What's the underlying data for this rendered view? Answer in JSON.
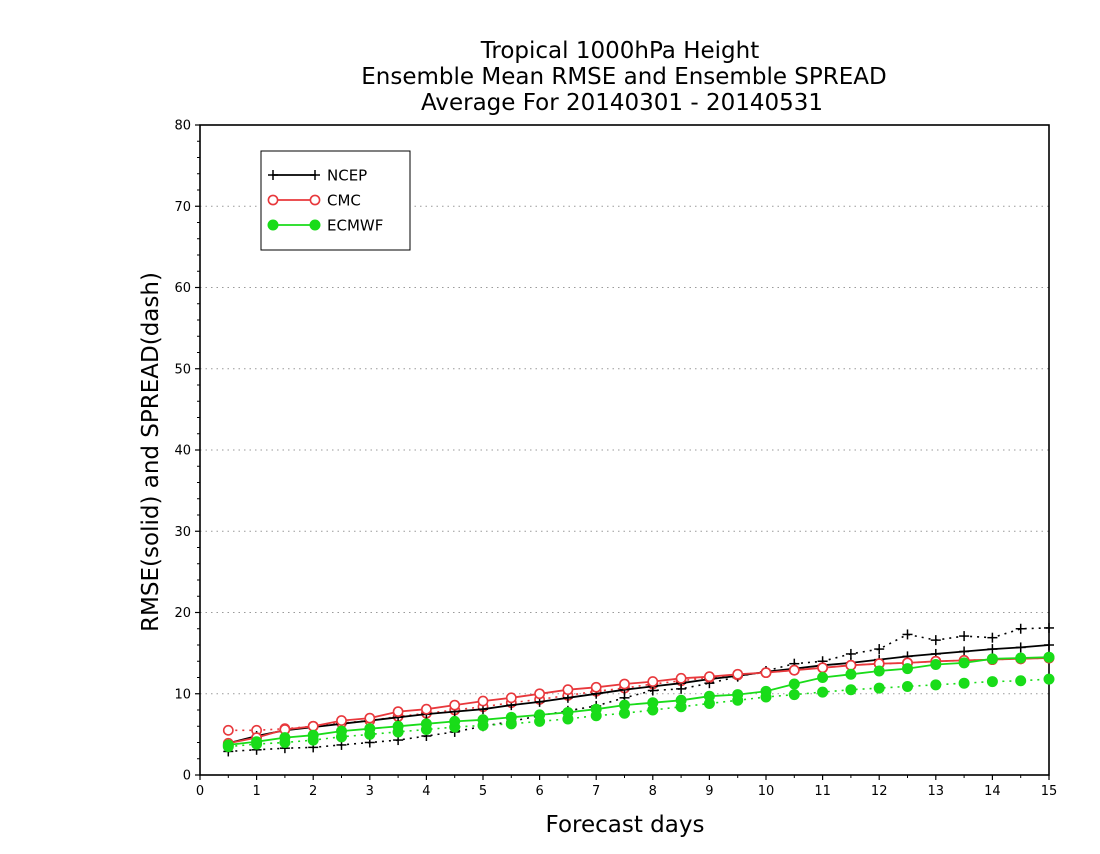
{
  "chart_data": {
    "type": "line",
    "title_lines": [
      "Tropical 1000hPa Height",
      "Ensemble Mean RMSE and Ensemble SPREAD",
      "Average For 20140301 - 20140531"
    ],
    "xlabel": "Forecast days",
    "ylabel": "RMSE(solid) and SPREAD(dash)",
    "xlim": [
      0,
      15
    ],
    "ylim": [
      0,
      80
    ],
    "x_ticks": [
      "0",
      "1",
      "2",
      "3",
      "4",
      "5",
      "6",
      "7",
      "8",
      "9",
      "10",
      "11",
      "12",
      "13",
      "14",
      "15"
    ],
    "y_ticks": [
      "0",
      "10",
      "20",
      "30",
      "40",
      "50",
      "60",
      "70",
      "80"
    ],
    "grid": "horizontal dotted",
    "legend_position": "top-left",
    "colors": {
      "NCEP": "#000000",
      "CMC": "#e8383c",
      "ECMWF": "#19dc19"
    },
    "x": [
      0.5,
      1,
      1.5,
      2,
      2.5,
      3,
      3.5,
      4,
      4.5,
      5,
      5.5,
      6,
      6.5,
      7,
      7.5,
      8,
      8.5,
      9,
      9.5,
      10,
      10.5,
      11,
      11.5,
      12,
      12.5,
      13,
      13.5,
      14,
      14.5,
      15
    ],
    "series": [
      {
        "name": "NCEP",
        "key": "ncep",
        "metric": "RMSE",
        "style": "solid",
        "marker": "plus",
        "values": [
          3.9,
          4.8,
          5.5,
          5.9,
          6.3,
          6.7,
          7.1,
          7.5,
          7.8,
          8.1,
          8.6,
          9.0,
          9.5,
          10.0,
          10.5,
          10.9,
          11.3,
          11.8,
          12.2,
          12.7,
          13.1,
          13.5,
          13.8,
          14.2,
          14.6,
          14.9,
          15.2,
          15.5,
          15.7,
          16.0
        ]
      },
      {
        "name": "NCEP",
        "key": "ncep",
        "metric": "SPREAD",
        "style": "dash",
        "marker": "plus",
        "values": [
          2.9,
          3.1,
          3.3,
          3.4,
          3.7,
          4.0,
          4.3,
          4.8,
          5.3,
          6.0,
          6.6,
          7.3,
          7.9,
          8.5,
          9.5,
          10.4,
          10.6,
          11.3,
          12.1,
          12.8,
          13.7,
          14.0,
          14.9,
          15.5,
          17.3,
          16.6,
          17.1,
          16.9,
          18.0,
          18.1
        ]
      },
      {
        "name": "CMC",
        "key": "cmc",
        "metric": "RMSE",
        "style": "solid",
        "marker": "open-circle",
        "values": [
          3.9,
          4.6,
          5.6,
          6.0,
          6.7,
          7.0,
          7.8,
          8.1,
          8.6,
          9.1,
          9.5,
          10.0,
          10.5,
          10.8,
          11.2,
          11.5,
          11.9,
          12.1,
          12.4,
          12.6,
          12.9,
          13.2,
          13.5,
          13.7,
          13.8,
          14.0,
          14.1,
          14.2,
          14.3,
          14.4
        ]
      },
      {
        "name": "CMC",
        "key": "cmc",
        "metric": "SPREAD",
        "style": "dash",
        "marker": "open-circle",
        "values": [
          5.5,
          5.5,
          5.7,
          6.0,
          6.4,
          6.7,
          7.2,
          7.6,
          8.0,
          8.4,
          8.9,
          9.3,
          9.8,
          10.3,
          10.7,
          11.2,
          11.6,
          12.0,
          12.3,
          12.6,
          12.9,
          13.2,
          13.5,
          13.7,
          13.8,
          14.0,
          14.1,
          14.2,
          14.3,
          14.4
        ]
      },
      {
        "name": "ECMWF",
        "key": "ecmwf",
        "metric": "RMSE",
        "style": "solid",
        "marker": "filled-circle",
        "values": [
          3.7,
          4.1,
          4.6,
          4.9,
          5.4,
          5.7,
          6.0,
          6.3,
          6.6,
          6.8,
          7.1,
          7.4,
          7.7,
          8.1,
          8.6,
          8.9,
          9.2,
          9.7,
          9.9,
          10.3,
          11.2,
          12.0,
          12.4,
          12.8,
          13.1,
          13.6,
          13.8,
          14.3,
          14.4,
          14.5
        ]
      },
      {
        "name": "ECMWF",
        "key": "ecmwf",
        "metric": "SPREAD",
        "style": "dash",
        "marker": "filled-circle",
        "values": [
          3.5,
          3.8,
          4.0,
          4.3,
          4.7,
          5.0,
          5.3,
          5.6,
          5.9,
          6.1,
          6.3,
          6.6,
          6.9,
          7.3,
          7.6,
          8.0,
          8.4,
          8.8,
          9.2,
          9.6,
          9.9,
          10.2,
          10.5,
          10.7,
          10.9,
          11.1,
          11.3,
          11.5,
          11.6,
          11.8
        ]
      }
    ],
    "legend": [
      {
        "label": "NCEP",
        "key": "ncep"
      },
      {
        "label": "CMC",
        "key": "cmc"
      },
      {
        "label": "ECMWF",
        "key": "ecmwf"
      }
    ]
  }
}
